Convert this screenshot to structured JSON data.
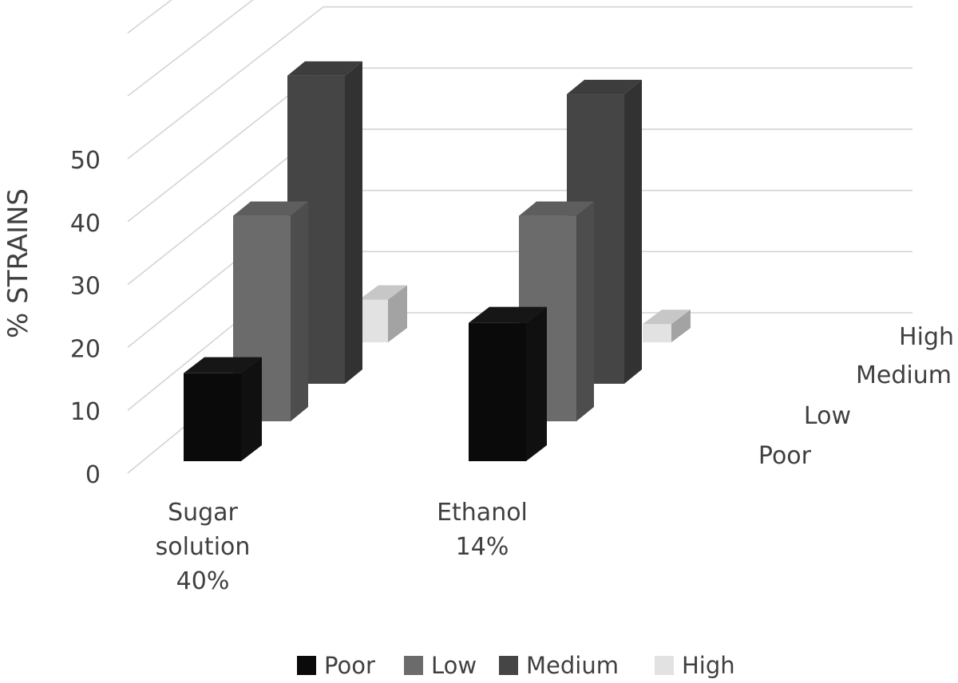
{
  "chart_data": {
    "type": "bar",
    "subtype": "3d-clustered-column",
    "title": "",
    "ylabel": "% STRAINS",
    "xlabel": "",
    "ylim": [
      0,
      50
    ],
    "yticks": [
      0,
      10,
      20,
      30,
      40,
      50
    ],
    "grid": true,
    "legend_position": "bottom",
    "categories": [
      {
        "lines": [
          "Sugar",
          "solution",
          "40%"
        ]
      },
      {
        "lines": [
          "Ethanol",
          "14%"
        ]
      }
    ],
    "depth_labels": [
      "Poor",
      "Low",
      "Medium",
      "High"
    ],
    "series": [
      {
        "name": "Poor",
        "color": "#0a0a0a",
        "values": [
          14,
          22
        ]
      },
      {
        "name": "Low",
        "color": "#6b6b6b",
        "values": [
          33,
          33
        ]
      },
      {
        "name": "Medium",
        "color": "#454545",
        "values": [
          50,
          47
        ]
      },
      {
        "name": "High",
        "color": "#e2e2e2",
        "values": [
          7,
          3
        ]
      }
    ]
  }
}
